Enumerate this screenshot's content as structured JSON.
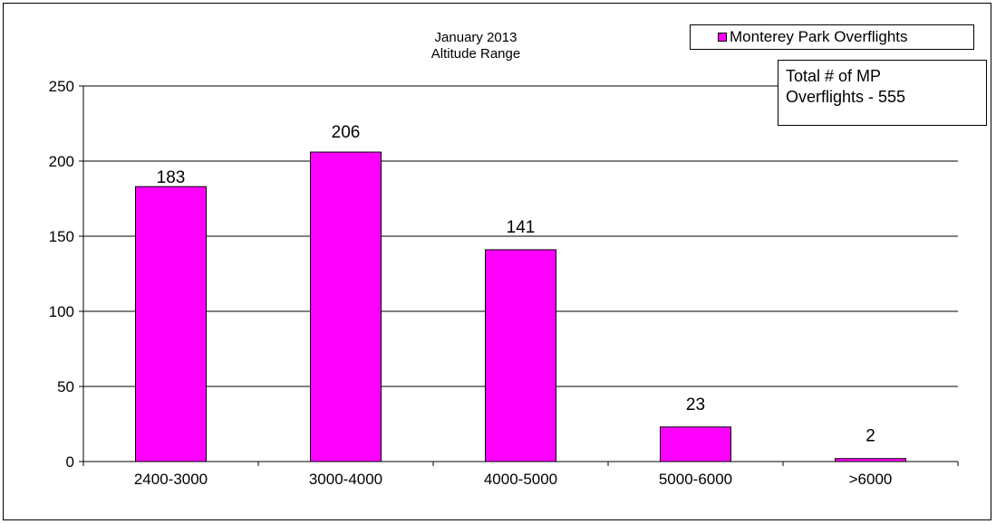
{
  "chart_data": {
    "type": "bar",
    "title_lines": [
      "January 2013",
      "Altitude Range"
    ],
    "categories": [
      "2400-3000",
      "3000-4000",
      "4000-5000",
      "5000-6000",
      ">6000"
    ],
    "series": [
      {
        "name": "Monterey Park Overflights",
        "values": [
          183,
          206,
          141,
          23,
          2
        ],
        "color": "#ff00ff"
      }
    ],
    "data_labels": [
      "183",
      "206",
      "141",
      "23",
      "2"
    ],
    "y_ticks": [
      0,
      50,
      100,
      150,
      200,
      250
    ],
    "ylim": [
      0,
      250
    ],
    "grid": true,
    "legend_position": "top-right"
  },
  "annotation": {
    "lines": [
      "Total # of MP",
      "Overflights - 555"
    ]
  }
}
